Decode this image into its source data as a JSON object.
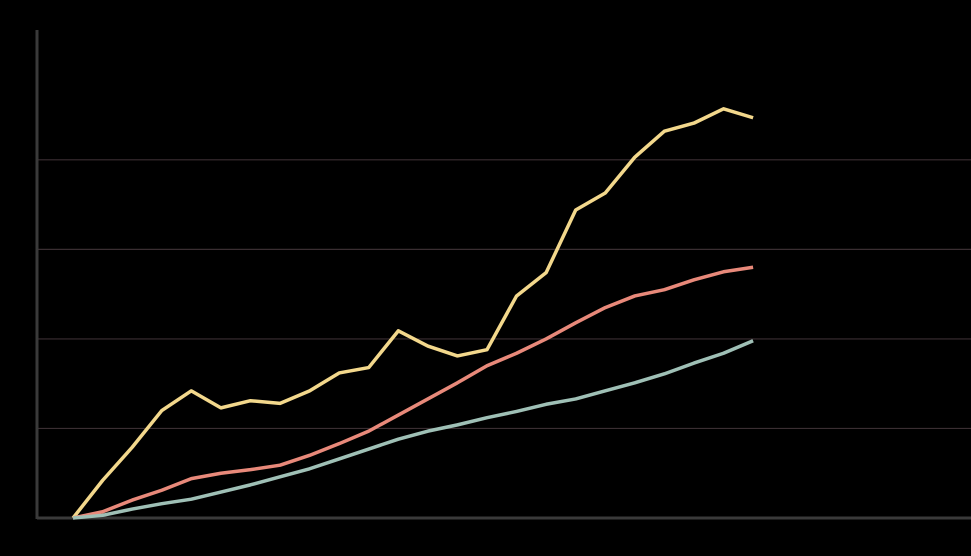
{
  "chart_data": {
    "type": "line",
    "x": [
      0,
      1,
      2,
      3,
      4,
      5,
      6,
      7,
      8,
      9,
      10,
      11,
      12,
      13,
      14,
      15,
      16,
      17,
      18,
      19,
      20,
      21,
      22,
      23
    ],
    "series": [
      {
        "color": "#f3d88c",
        "values": [
          0,
          0.42,
          0.79,
          1.2,
          1.42,
          1.23,
          1.31,
          1.28,
          1.42,
          1.62,
          1.68,
          2.09,
          1.92,
          1.81,
          1.88,
          2.48,
          2.74,
          3.44,
          3.63,
          4.03,
          4.32,
          4.41,
          4.57,
          4.47
        ]
      },
      {
        "color": "#e8897a",
        "values": [
          0,
          0.07,
          0.2,
          0.31,
          0.44,
          0.5,
          0.54,
          0.59,
          0.7,
          0.83,
          0.97,
          1.15,
          1.33,
          1.51,
          1.7,
          1.84,
          2.0,
          2.18,
          2.35,
          2.48,
          2.55,
          2.66,
          2.75,
          2.8
        ]
      },
      {
        "color": "#9fc0b6",
        "values": [
          0,
          0.03,
          0.1,
          0.16,
          0.21,
          0.29,
          0.37,
          0.46,
          0.55,
          0.66,
          0.77,
          0.88,
          0.97,
          1.04,
          1.12,
          1.19,
          1.27,
          1.33,
          1.42,
          1.51,
          1.61,
          1.73,
          1.84,
          1.98
        ]
      }
    ],
    "xlim": [
      -1.22,
      30.37
    ],
    "ylim": [
      0,
      5.45
    ],
    "yticks": [
      0,
      1,
      2,
      3,
      4
    ],
    "grid": true
  }
}
